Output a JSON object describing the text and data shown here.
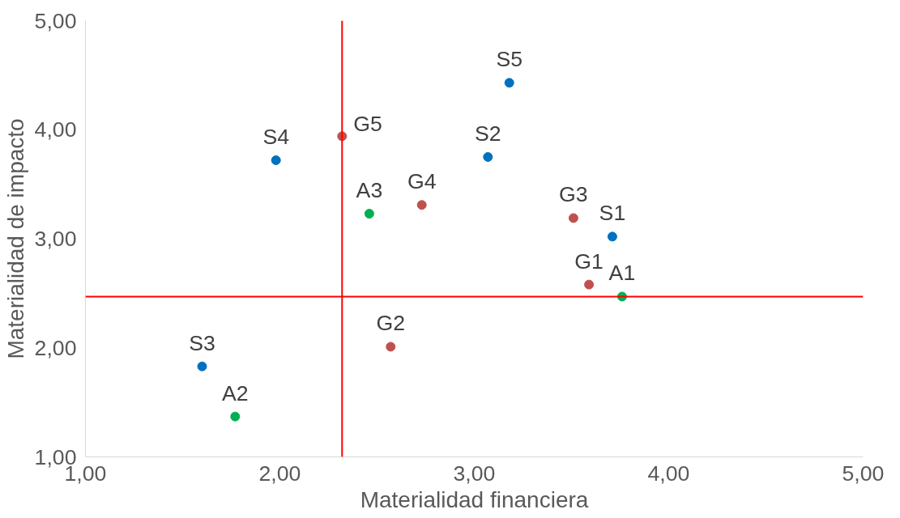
{
  "chart_data": {
    "type": "scatter",
    "xlabel": "Materialidad financiera",
    "ylabel": "Materialidad de impacto",
    "xlim": [
      1,
      5
    ],
    "ylim": [
      1,
      5
    ],
    "xticks": [
      {
        "value": 1,
        "label": "1,00"
      },
      {
        "value": 2,
        "label": "2,00"
      },
      {
        "value": 3,
        "label": "3,00"
      },
      {
        "value": 4,
        "label": "4,00"
      },
      {
        "value": 5,
        "label": "5,00"
      }
    ],
    "yticks": [
      {
        "value": 1,
        "label": "1,00"
      },
      {
        "value": 2,
        "label": "2,00"
      },
      {
        "value": 3,
        "label": "3,00"
      },
      {
        "value": 4,
        "label": "4,00"
      },
      {
        "value": 5,
        "label": "5,00"
      }
    ],
    "grid": false,
    "marker": "circle",
    "series": [
      {
        "color": "#0070c0",
        "x": [
          3.71,
          3.07,
          1.6,
          1.98,
          3.18
        ],
        "values": [
          3.02,
          3.75,
          1.83,
          3.72,
          4.43
        ]
      },
      {
        "color": "#c0504d",
        "x": [
          3.59,
          2.57,
          3.51,
          2.73,
          2.32
        ],
        "values": [
          2.58,
          2.01,
          3.19,
          3.31,
          3.94
        ]
      },
      {
        "color": "#00b050",
        "x": [
          3.76,
          1.77,
          2.46
        ],
        "values": [
          2.47,
          1.37,
          3.23
        ]
      }
    ],
    "ref_lines": [
      {
        "axis": "x",
        "value": 2.32,
        "color": "#ff0000"
      },
      {
        "axis": "y",
        "value": 2.47,
        "color": "#ff0000"
      }
    ],
    "annotations": [
      {
        "text": "S1",
        "x": 3.71,
        "y": 3.02
      },
      {
        "text": "S2",
        "x": 3.07,
        "y": 3.75
      },
      {
        "text": "S3",
        "x": 1.6,
        "y": 1.83
      },
      {
        "text": "S4",
        "x": 1.98,
        "y": 3.72
      },
      {
        "text": "S5",
        "x": 3.18,
        "y": 4.43
      },
      {
        "text": "G1",
        "x": 3.59,
        "y": 2.58
      },
      {
        "text": "G2",
        "x": 2.57,
        "y": 2.01
      },
      {
        "text": "G3",
        "x": 3.51,
        "y": 3.19
      },
      {
        "text": "G4",
        "x": 2.73,
        "y": 3.31
      },
      {
        "text": "G5",
        "x": 2.32,
        "y": 3.94
      },
      {
        "text": "A1",
        "x": 3.76,
        "y": 2.47
      },
      {
        "text": "A2",
        "x": 1.77,
        "y": 1.37
      },
      {
        "text": "A3",
        "x": 2.46,
        "y": 3.23
      }
    ]
  }
}
